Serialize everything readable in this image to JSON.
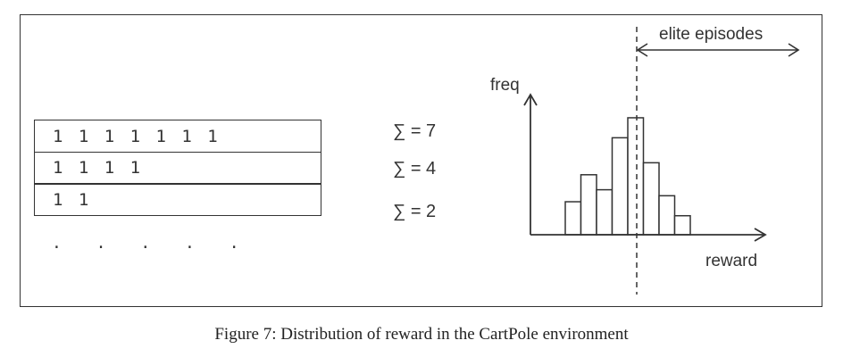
{
  "episodes": {
    "rows": [
      "1 1 1 1 1 1 1",
      "1 1 1 1",
      "1 1"
    ],
    "ellipsis": ". . . . ."
  },
  "sums": [
    "∑ = 7",
    "∑ = 4",
    "∑ = 2"
  ],
  "histogram": {
    "y_axis_label": "freq",
    "x_axis_label": "reward",
    "elite_label": "elite episodes",
    "bar_heights": [
      0.33,
      0.6,
      0.45,
      0.97,
      1.17,
      0.72,
      0.39,
      0.19
    ],
    "threshold_bar_index": 4
  },
  "caption": "Figure 7: Distribution of reward in the CartPole environment"
}
